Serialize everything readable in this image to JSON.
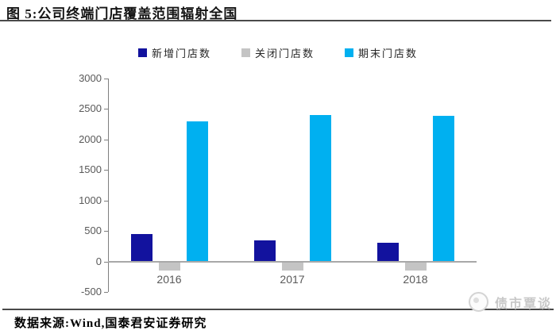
{
  "figure": {
    "title": "图 5:公司终端门店覆盖范围辐射全国",
    "source": "数据来源:Wind,国泰君安证券研究",
    "watermark": "债市覃谈"
  },
  "chart_data": {
    "type": "bar",
    "title": "公司终端门店覆盖范围辐射全国",
    "categories": [
      "2016",
      "2017",
      "2018"
    ],
    "series": [
      {
        "name": "新增门店数",
        "color": "#12129E",
        "values": [
          450,
          340,
          300
        ]
      },
      {
        "name": "关闭门店数",
        "color": "#C4C4C4",
        "values": [
          -150,
          -150,
          -150
        ]
      },
      {
        "name": "期末门店数",
        "color": "#00B0F0",
        "values": [
          2290,
          2390,
          2380
        ]
      }
    ],
    "ylim": [
      -500,
      3000
    ],
    "ytick_step": 500,
    "yticks": [
      3000,
      2500,
      2000,
      1500,
      1000,
      500,
      0,
      -500
    ],
    "grid": false,
    "legend_position": "top"
  }
}
